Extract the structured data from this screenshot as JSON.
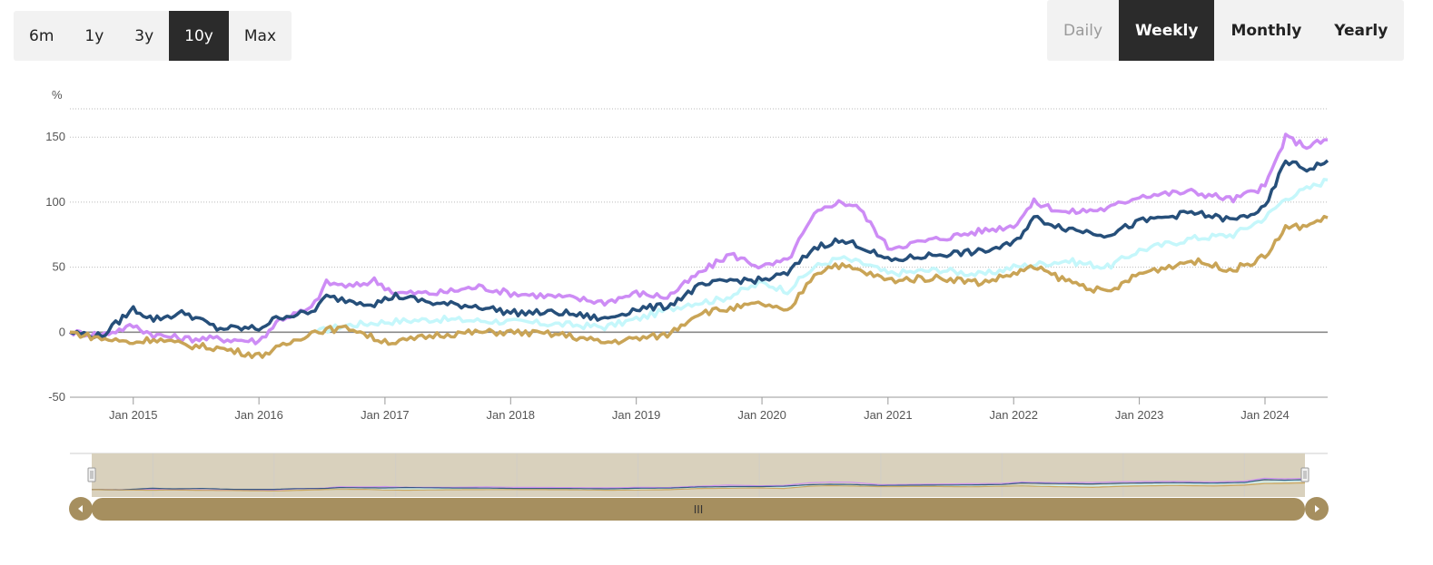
{
  "range_selector": {
    "buttons": [
      {
        "label": "6m",
        "active": false
      },
      {
        "label": "1y",
        "active": false
      },
      {
        "label": "3y",
        "active": false
      },
      {
        "label": "10y",
        "active": true
      },
      {
        "label": "Max",
        "active": false
      }
    ]
  },
  "period_selector": {
    "buttons": [
      {
        "label": "Daily",
        "state": "disabled"
      },
      {
        "label": "Weekly",
        "state": "active"
      },
      {
        "label": "Monthly",
        "state": "normal"
      },
      {
        "label": "Yearly",
        "state": "normal"
      }
    ]
  },
  "chart_data": {
    "type": "line",
    "title": "",
    "xlabel": "",
    "ylabel": "%",
    "ylim": [
      -50,
      215
    ],
    "y_ticks": [
      "-50",
      "0",
      "50",
      "100",
      "150"
    ],
    "x_range": [
      "2014-07-01",
      "2024-07-01"
    ],
    "x_ticks": [
      {
        "label": "Jan 2015",
        "date": "2015-01-01"
      },
      {
        "label": "Jan 2016",
        "date": "2016-01-01"
      },
      {
        "label": "Jan 2017",
        "date": "2017-01-01"
      },
      {
        "label": "Jan 2018",
        "date": "2018-01-01"
      },
      {
        "label": "Jan 2019",
        "date": "2019-01-01"
      },
      {
        "label": "Jan 2020",
        "date": "2020-01-01"
      },
      {
        "label": "Jan 2021",
        "date": "2021-01-01"
      },
      {
        "label": "Jan 2022",
        "date": "2022-01-01"
      },
      {
        "label": "Jan 2023",
        "date": "2023-01-01"
      },
      {
        "label": "Jan 2024",
        "date": "2024-01-01"
      }
    ],
    "grid": true,
    "series": [
      {
        "color": "#c5f7fb",
        "points": [
          [
            "2016-06-15",
            0
          ],
          [
            "2016-09-01",
            5
          ],
          [
            "2017-01-01",
            8
          ],
          [
            "2017-06-01",
            10
          ],
          [
            "2018-01-01",
            8
          ],
          [
            "2018-06-01",
            6
          ],
          [
            "2018-10-01",
            4
          ],
          [
            "2019-01-01",
            10
          ],
          [
            "2019-06-01",
            22
          ],
          [
            "2019-09-01",
            25
          ],
          [
            "2020-01-01",
            38
          ],
          [
            "2020-03-15",
            32
          ],
          [
            "2020-06-01",
            50
          ],
          [
            "2020-08-15",
            57
          ],
          [
            "2020-11-01",
            52
          ],
          [
            "2021-01-01",
            45
          ],
          [
            "2021-06-01",
            48
          ],
          [
            "2021-10-01",
            44
          ],
          [
            "2022-01-01",
            50
          ],
          [
            "2022-06-01",
            55
          ],
          [
            "2022-10-01",
            50
          ],
          [
            "2023-01-01",
            63
          ],
          [
            "2023-06-01",
            72
          ],
          [
            "2023-10-01",
            75
          ],
          [
            "2024-01-01",
            88
          ],
          [
            "2024-03-01",
            103
          ],
          [
            "2024-05-01",
            110
          ],
          [
            "2024-07-01",
            117
          ]
        ]
      },
      {
        "color": "#cd8cf5",
        "points": [
          [
            "2014-07-01",
            0
          ],
          [
            "2014-10-01",
            -2
          ],
          [
            "2015-01-01",
            5
          ],
          [
            "2015-03-01",
            -2
          ],
          [
            "2015-06-01",
            -5
          ],
          [
            "2015-09-01",
            -5
          ],
          [
            "2016-01-01",
            -7
          ],
          [
            "2016-03-01",
            10
          ],
          [
            "2016-06-01",
            18
          ],
          [
            "2016-07-15",
            38
          ],
          [
            "2016-10-01",
            35
          ],
          [
            "2016-12-01",
            40
          ],
          [
            "2017-02-01",
            30
          ],
          [
            "2017-06-01",
            30
          ],
          [
            "2017-10-01",
            35
          ],
          [
            "2018-01-01",
            30
          ],
          [
            "2018-06-01",
            27
          ],
          [
            "2018-10-01",
            23
          ],
          [
            "2019-01-01",
            30
          ],
          [
            "2019-04-01",
            27
          ],
          [
            "2019-07-01",
            45
          ],
          [
            "2019-10-01",
            60
          ],
          [
            "2020-01-01",
            50
          ],
          [
            "2020-03-15",
            55
          ],
          [
            "2020-06-01",
            90
          ],
          [
            "2020-08-01",
            100
          ],
          [
            "2020-10-01",
            98
          ],
          [
            "2021-01-01",
            65
          ],
          [
            "2021-06-01",
            72
          ],
          [
            "2021-10-01",
            78
          ],
          [
            "2022-01-01",
            82
          ],
          [
            "2022-03-01",
            100
          ],
          [
            "2022-06-01",
            92
          ],
          [
            "2022-10-01",
            95
          ],
          [
            "2023-01-01",
            105
          ],
          [
            "2023-06-01",
            108
          ],
          [
            "2023-10-01",
            102
          ],
          [
            "2024-01-01",
            112
          ],
          [
            "2024-03-01",
            150
          ],
          [
            "2024-05-01",
            143
          ],
          [
            "2024-07-01",
            148
          ]
        ]
      },
      {
        "color": "#264f7a",
        "points": [
          [
            "2014-07-01",
            0
          ],
          [
            "2014-10-01",
            -3
          ],
          [
            "2015-01-01",
            18
          ],
          [
            "2015-03-01",
            10
          ],
          [
            "2015-06-01",
            15
          ],
          [
            "2015-09-01",
            3
          ],
          [
            "2016-01-01",
            3
          ],
          [
            "2016-03-01",
            12
          ],
          [
            "2016-06-01",
            15
          ],
          [
            "2016-07-15",
            27
          ],
          [
            "2016-10-01",
            24
          ],
          [
            "2016-12-01",
            22
          ],
          [
            "2017-02-01",
            28
          ],
          [
            "2017-06-01",
            22
          ],
          [
            "2017-10-01",
            20
          ],
          [
            "2018-01-01",
            15
          ],
          [
            "2018-06-01",
            15
          ],
          [
            "2018-10-01",
            10
          ],
          [
            "2019-01-01",
            18
          ],
          [
            "2019-04-01",
            20
          ],
          [
            "2019-07-01",
            35
          ],
          [
            "2019-10-01",
            40
          ],
          [
            "2020-01-01",
            40
          ],
          [
            "2020-03-15",
            45
          ],
          [
            "2020-06-01",
            65
          ],
          [
            "2020-08-01",
            70
          ],
          [
            "2020-10-01",
            68
          ],
          [
            "2021-01-01",
            55
          ],
          [
            "2021-06-01",
            60
          ],
          [
            "2021-10-01",
            62
          ],
          [
            "2022-01-01",
            68
          ],
          [
            "2022-03-01",
            88
          ],
          [
            "2022-06-01",
            80
          ],
          [
            "2022-10-01",
            75
          ],
          [
            "2023-01-01",
            85
          ],
          [
            "2023-06-01",
            92
          ],
          [
            "2023-10-01",
            86
          ],
          [
            "2024-01-01",
            95
          ],
          [
            "2024-03-01",
            132
          ],
          [
            "2024-05-01",
            125
          ],
          [
            "2024-07-01",
            132
          ]
        ]
      },
      {
        "color": "#c9a456",
        "points": [
          [
            "2014-07-01",
            0
          ],
          [
            "2014-10-01",
            -5
          ],
          [
            "2015-01-01",
            -8
          ],
          [
            "2015-03-01",
            -5
          ],
          [
            "2015-06-01",
            -10
          ],
          [
            "2015-09-01",
            -12
          ],
          [
            "2016-01-01",
            -18
          ],
          [
            "2016-03-01",
            -12
          ],
          [
            "2016-06-01",
            0
          ],
          [
            "2016-07-15",
            2
          ],
          [
            "2016-10-01",
            3
          ],
          [
            "2016-12-01",
            -5
          ],
          [
            "2017-02-01",
            -8
          ],
          [
            "2017-06-01",
            -2
          ],
          [
            "2017-10-01",
            0
          ],
          [
            "2018-01-01",
            0
          ],
          [
            "2018-06-01",
            -2
          ],
          [
            "2018-10-01",
            -8
          ],
          [
            "2019-01-01",
            -5
          ],
          [
            "2019-04-01",
            -2
          ],
          [
            "2019-07-01",
            15
          ],
          [
            "2019-10-01",
            18
          ],
          [
            "2020-01-01",
            22
          ],
          [
            "2020-03-15",
            15
          ],
          [
            "2020-06-01",
            45
          ],
          [
            "2020-08-01",
            52
          ],
          [
            "2020-10-01",
            48
          ],
          [
            "2021-01-01",
            40
          ],
          [
            "2021-06-01",
            42
          ],
          [
            "2021-10-01",
            38
          ],
          [
            "2022-01-01",
            45
          ],
          [
            "2022-03-01",
            50
          ],
          [
            "2022-06-01",
            40
          ],
          [
            "2022-10-01",
            30
          ],
          [
            "2023-01-01",
            45
          ],
          [
            "2023-06-01",
            55
          ],
          [
            "2023-10-01",
            48
          ],
          [
            "2024-01-01",
            58
          ],
          [
            "2024-03-01",
            80
          ],
          [
            "2024-05-01",
            82
          ],
          [
            "2024-07-01",
            88
          ]
        ]
      }
    ]
  },
  "navigator": {
    "range": [
      "2014-07-01",
      "2024-07-01"
    ],
    "selected": [
      "2014-07-01",
      "2024-07-01"
    ],
    "grip_label": "III"
  },
  "colors": {
    "button_active_bg": "#2b2b2b",
    "button_group_bg": "#f2f2f2",
    "gridline": "#bbbbbb",
    "zero_line": "#888888",
    "navigator_mask": "#d9d1bd",
    "scrollbar": "#a68f5f"
  }
}
